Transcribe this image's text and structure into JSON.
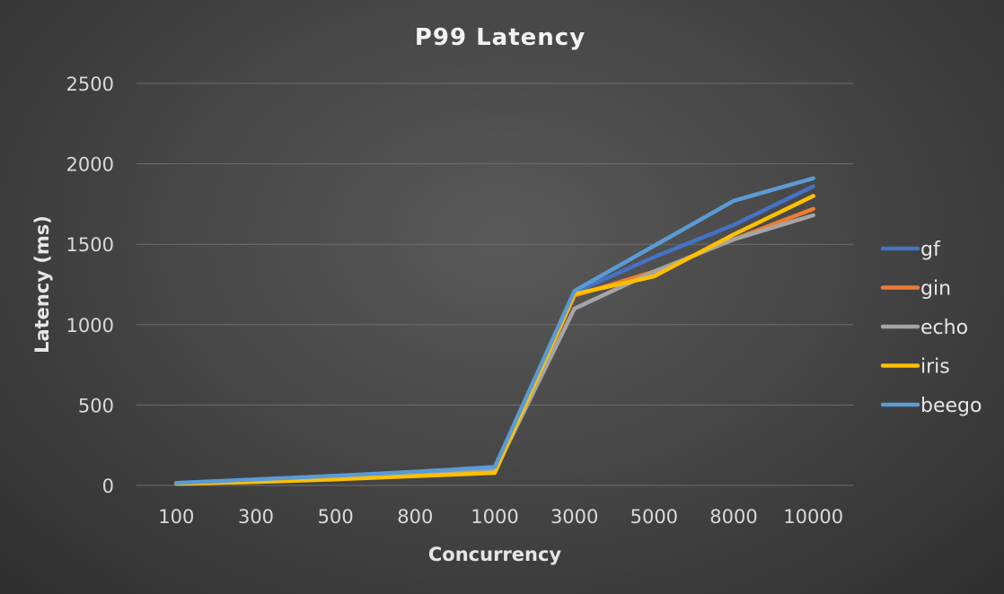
{
  "chart_data": {
    "type": "line",
    "title": "P99 Latency",
    "xlabel": "Concurrency",
    "ylabel": "Latency (ms)",
    "categories": [
      "100",
      "300",
      "500",
      "800",
      "1000",
      "3000",
      "5000",
      "8000",
      "10000"
    ],
    "ylim": [
      0,
      2500
    ],
    "yticks": [
      0,
      500,
      1000,
      1500,
      2000,
      2500
    ],
    "grid": true,
    "legend_position": "right",
    "series": [
      {
        "name": "gf",
        "color": "#4472c4",
        "values": [
          15,
          35,
          55,
          80,
          105,
          1200,
          1420,
          1620,
          1860
        ]
      },
      {
        "name": "gin",
        "color": "#ed7d31",
        "values": [
          12,
          25,
          40,
          60,
          80,
          1180,
          1330,
          1530,
          1720
        ]
      },
      {
        "name": "echo",
        "color": "#a5a5a5",
        "values": [
          12,
          28,
          45,
          65,
          90,
          1100,
          1330,
          1530,
          1680
        ]
      },
      {
        "name": "iris",
        "color": "#ffc000",
        "values": [
          10,
          22,
          38,
          58,
          78,
          1190,
          1300,
          1560,
          1800
        ]
      },
      {
        "name": "beego",
        "color": "#5b9bd5",
        "values": [
          15,
          38,
          60,
          85,
          115,
          1210,
          1490,
          1770,
          1910
        ]
      }
    ]
  }
}
